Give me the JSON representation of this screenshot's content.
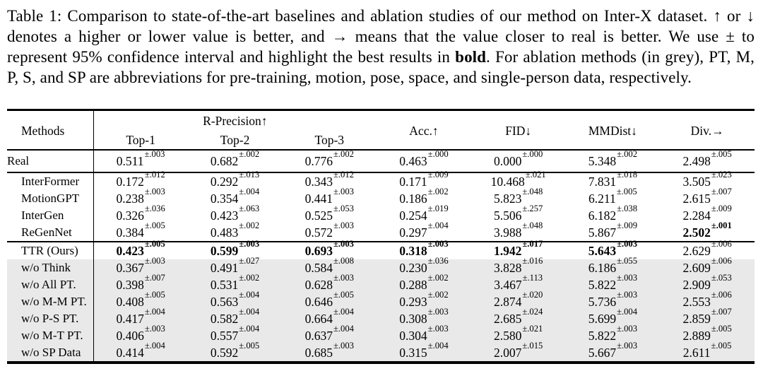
{
  "caption": {
    "body_before_bold": "Table 1:  Comparison to state-of-the-art baselines and ablation studies of our method on Inter-X dataset. ↑ or ↓ denotes a higher or lower value is better, and → means that the value closer to real is better. We use ± to represent 95% confidence interval and highlight the best results in ",
    "bold_word": "bold",
    "body_after_bold": ". For ablation methods (in grey), PT, M, P, S, and SP are abbreviations for pre-training, motion, pose, space, and single-person data, respectively."
  },
  "table": {
    "header": {
      "methods": "Methods",
      "r_precision": "R-Precision↑",
      "top1": "Top-1",
      "top2": "Top-2",
      "top3": "Top-3",
      "acc": "Acc.↑",
      "fid": "FID↓",
      "mmdist": "MMDist↓",
      "div": "Div.→"
    },
    "groups": [
      {
        "name": "real",
        "rows": [
          {
            "method": "Real",
            "shaded": false,
            "cells": [
              {
                "v": "0.511",
                "pm": "±.003"
              },
              {
                "v": "0.682",
                "pm": "±.002"
              },
              {
                "v": "0.776",
                "pm": "±.002"
              },
              {
                "v": "0.463",
                "pm": "±.000"
              },
              {
                "v": "0.000",
                "pm": "±.000"
              },
              {
                "v": "5.348",
                "pm": "±.002"
              },
              {
                "v": "2.498",
                "pm": "±.005"
              }
            ]
          }
        ]
      },
      {
        "name": "baselines",
        "rows": [
          {
            "method": "InterFormer",
            "shaded": false,
            "cells": [
              {
                "v": "0.172",
                "pm": "±.012"
              },
              {
                "v": "0.292",
                "pm": "±.013"
              },
              {
                "v": "0.343",
                "pm": "±.012"
              },
              {
                "v": "0.171",
                "pm": "±.009"
              },
              {
                "v": "10.468",
                "pm": "±.021"
              },
              {
                "v": "7.831",
                "pm": "±.018"
              },
              {
                "v": "3.505",
                "pm": "±.023"
              }
            ]
          },
          {
            "method": "MotionGPT",
            "shaded": false,
            "cells": [
              {
                "v": "0.238",
                "pm": "±.003"
              },
              {
                "v": "0.354",
                "pm": "±.004"
              },
              {
                "v": "0.441",
                "pm": "±.003"
              },
              {
                "v": "0.186",
                "pm": "±.002"
              },
              {
                "v": "5.823",
                "pm": "±.048"
              },
              {
                "v": "6.211",
                "pm": "±.005"
              },
              {
                "v": "2.615",
                "pm": "±.007"
              }
            ]
          },
          {
            "method": "InterGen",
            "shaded": false,
            "cells": [
              {
                "v": "0.326",
                "pm": "±.036"
              },
              {
                "v": "0.423",
                "pm": "±.063"
              },
              {
                "v": "0.525",
                "pm": "±.053"
              },
              {
                "v": "0.254",
                "pm": "±.019"
              },
              {
                "v": "5.506",
                "pm": "±.257"
              },
              {
                "v": "6.182",
                "pm": "±.038"
              },
              {
                "v": "2.284",
                "pm": "±.009"
              }
            ]
          },
          {
            "method": "ReGenNet",
            "shaded": false,
            "cells": [
              {
                "v": "0.384",
                "pm": "±.005"
              },
              {
                "v": "0.483",
                "pm": "±.002"
              },
              {
                "v": "0.572",
                "pm": "±.003"
              },
              {
                "v": "0.297",
                "pm": "±.004"
              },
              {
                "v": "3.988",
                "pm": "±.048"
              },
              {
                "v": "5.867",
                "pm": "±.009"
              },
              {
                "v": "2.502",
                "pm": "±.001",
                "b": true
              }
            ]
          }
        ]
      },
      {
        "name": "ours-and-ablations",
        "rows": [
          {
            "method": "TTR (Ours)",
            "shaded": false,
            "cells": [
              {
                "v": "0.423",
                "pm": "±.005",
                "b": true
              },
              {
                "v": "0.599",
                "pm": "±.003",
                "b": true
              },
              {
                "v": "0.693",
                "pm": "±.003",
                "b": true
              },
              {
                "v": "0.318",
                "pm": "±.003",
                "b": true
              },
              {
                "v": "1.942",
                "pm": "±.017",
                "b": true
              },
              {
                "v": "5.643",
                "pm": "±.003",
                "b": true
              },
              {
                "v": "2.629",
                "pm": "±.006"
              }
            ]
          },
          {
            "method": "w/o Think",
            "shaded": true,
            "cells": [
              {
                "v": "0.367",
                "pm": "±.003"
              },
              {
                "v": "0.491",
                "pm": "±.027"
              },
              {
                "v": "0.584",
                "pm": "±.008"
              },
              {
                "v": "0.230",
                "pm": "±.036"
              },
              {
                "v": "3.828",
                "pm": "±.016"
              },
              {
                "v": "6.186",
                "pm": "±.055"
              },
              {
                "v": "2.609",
                "pm": "±.006"
              }
            ]
          },
          {
            "method": "w/o All PT.",
            "shaded": true,
            "cells": [
              {
                "v": "0.398",
                "pm": "±.007"
              },
              {
                "v": "0.531",
                "pm": "±.002"
              },
              {
                "v": "0.628",
                "pm": "±.003"
              },
              {
                "v": "0.288",
                "pm": "±.002"
              },
              {
                "v": "3.467",
                "pm": "±.113"
              },
              {
                "v": "5.822",
                "pm": "±.003"
              },
              {
                "v": "2.909",
                "pm": "±.053"
              }
            ]
          },
          {
            "method": "w/o M-M PT.",
            "shaded": true,
            "cells": [
              {
                "v": "0.408",
                "pm": "±.005"
              },
              {
                "v": "0.563",
                "pm": "±.004"
              },
              {
                "v": "0.646",
                "pm": "±.005"
              },
              {
                "v": "0.293",
                "pm": "±.002"
              },
              {
                "v": "2.874",
                "pm": "±.020"
              },
              {
                "v": "5.736",
                "pm": "±.003"
              },
              {
                "v": "2.553",
                "pm": "±.006"
              }
            ]
          },
          {
            "method": "w/o P-S PT.",
            "shaded": true,
            "cells": [
              {
                "v": "0.417",
                "pm": "±.004"
              },
              {
                "v": "0.582",
                "pm": "±.004"
              },
              {
                "v": "0.664",
                "pm": "±.004"
              },
              {
                "v": "0.308",
                "pm": "±.003"
              },
              {
                "v": "2.685",
                "pm": "±.024"
              },
              {
                "v": "5.699",
                "pm": "±.004"
              },
              {
                "v": "2.859",
                "pm": "±.007"
              }
            ]
          },
          {
            "method": "w/o M-T PT.",
            "shaded": true,
            "cells": [
              {
                "v": "0.406",
                "pm": "±.003"
              },
              {
                "v": "0.557",
                "pm": "±.004"
              },
              {
                "v": "0.637",
                "pm": "±.004"
              },
              {
                "v": "0.304",
                "pm": "±.003"
              },
              {
                "v": "2.580",
                "pm": "±.021"
              },
              {
                "v": "5.822",
                "pm": "±.003"
              },
              {
                "v": "2.889",
                "pm": "±.005"
              }
            ]
          },
          {
            "method": "w/o SP Data",
            "shaded": true,
            "cells": [
              {
                "v": "0.414",
                "pm": "±.004"
              },
              {
                "v": "0.592",
                "pm": "±.005"
              },
              {
                "v": "0.685",
                "pm": "±.003"
              },
              {
                "v": "0.315",
                "pm": "±.004"
              },
              {
                "v": "2.007",
                "pm": "±.015"
              },
              {
                "v": "5.667",
                "pm": "±.003"
              },
              {
                "v": "2.611",
                "pm": "±.005"
              }
            ]
          }
        ]
      }
    ]
  },
  "colors": {
    "ablation_row_bg": "#e9e9e9",
    "rule_color": "#000000",
    "text_color": "#000000"
  }
}
